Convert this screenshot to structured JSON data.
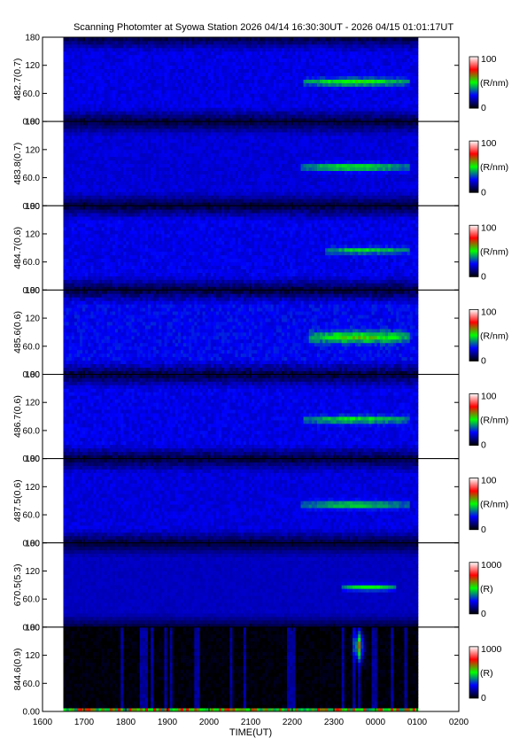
{
  "title": "Scanning Photomter at Syowa Station  2026 04/14 16:30:30UT - 2026 04/15 01:01:17UT",
  "chart_data": {
    "type": "heatmap",
    "xlabel": "TIME(UT)",
    "x_ticks": [
      "1600",
      "1700",
      "1800",
      "1900",
      "2000",
      "2100",
      "2200",
      "2300",
      "0000",
      "0100",
      "0200"
    ],
    "data_start_hour": 16.5,
    "data_end_hour": 25.02,
    "x_range_hours": [
      16,
      26
    ],
    "y_ticks": [
      "0.00",
      "60.0",
      "120",
      "180"
    ],
    "y_range": [
      0,
      180
    ],
    "grid": false,
    "colormap": [
      "#000000",
      "#0000ff",
      "#00ff00",
      "#ff0000",
      "#ffffff"
    ],
    "panels": [
      {
        "ylabel": "482.7(0.7)",
        "colorbar_max": "100",
        "colorbar_min": "0",
        "colorbar_unit": "(R/nm)",
        "noise": 0.55,
        "features": [
          {
            "type": "band",
            "t0": 22.3,
            "t1": 24.8,
            "y": 85,
            "h": 8,
            "intensity": 0.35
          }
        ]
      },
      {
        "ylabel": "483.8(0.7)",
        "colorbar_max": "100",
        "colorbar_min": "0",
        "colorbar_unit": "(R/nm)",
        "noise": 0.45,
        "features": [
          {
            "type": "band",
            "t0": 22.2,
            "t1": 24.8,
            "y": 83,
            "h": 8,
            "intensity": 0.35
          }
        ]
      },
      {
        "ylabel": "484.7(0.6)",
        "colorbar_max": "100",
        "colorbar_min": "0",
        "colorbar_unit": "(R/nm)",
        "noise": 0.6,
        "features": [
          {
            "type": "band",
            "t0": 22.8,
            "t1": 24.8,
            "y": 85,
            "h": 7,
            "intensity": 0.28
          }
        ]
      },
      {
        "ylabel": "485.6(0.6)",
        "colorbar_max": "100",
        "colorbar_min": "0",
        "colorbar_unit": "(R/nm)",
        "noise": 0.75,
        "features": [
          {
            "type": "band",
            "t0": 22.4,
            "t1": 24.8,
            "y": 80,
            "h": 12,
            "intensity": 0.35
          }
        ]
      },
      {
        "ylabel": "486.7(0.6)",
        "colorbar_max": "100",
        "colorbar_min": "0",
        "colorbar_unit": "(R/nm)",
        "noise": 0.6,
        "features": [
          {
            "type": "band",
            "t0": 22.3,
            "t1": 24.8,
            "y": 84,
            "h": 8,
            "intensity": 0.3
          }
        ]
      },
      {
        "ylabel": "487.5(0.6)",
        "colorbar_max": "100",
        "colorbar_min": "0",
        "colorbar_unit": "(R/nm)",
        "noise": 0.5,
        "features": [
          {
            "type": "band",
            "t0": 22.2,
            "t1": 24.8,
            "y": 82,
            "h": 8,
            "intensity": 0.3
          }
        ]
      },
      {
        "ylabel": "670.5(5.3)",
        "colorbar_max": "1000",
        "colorbar_min": "0",
        "colorbar_unit": "(R)",
        "noise": 0.25,
        "features": [
          {
            "type": "band",
            "t0": 23.2,
            "t1": 24.5,
            "y": 85,
            "h": 6,
            "intensity": 0.4
          }
        ]
      },
      {
        "ylabel": "844.6(0.9)",
        "colorbar_max": "1000",
        "colorbar_min": "0",
        "colorbar_unit": "(R)",
        "noise": 0.2,
        "dark": true,
        "features": [
          {
            "type": "blob",
            "t": 23.6,
            "y": 140,
            "intensity": 0.55
          }
        ]
      }
    ]
  }
}
